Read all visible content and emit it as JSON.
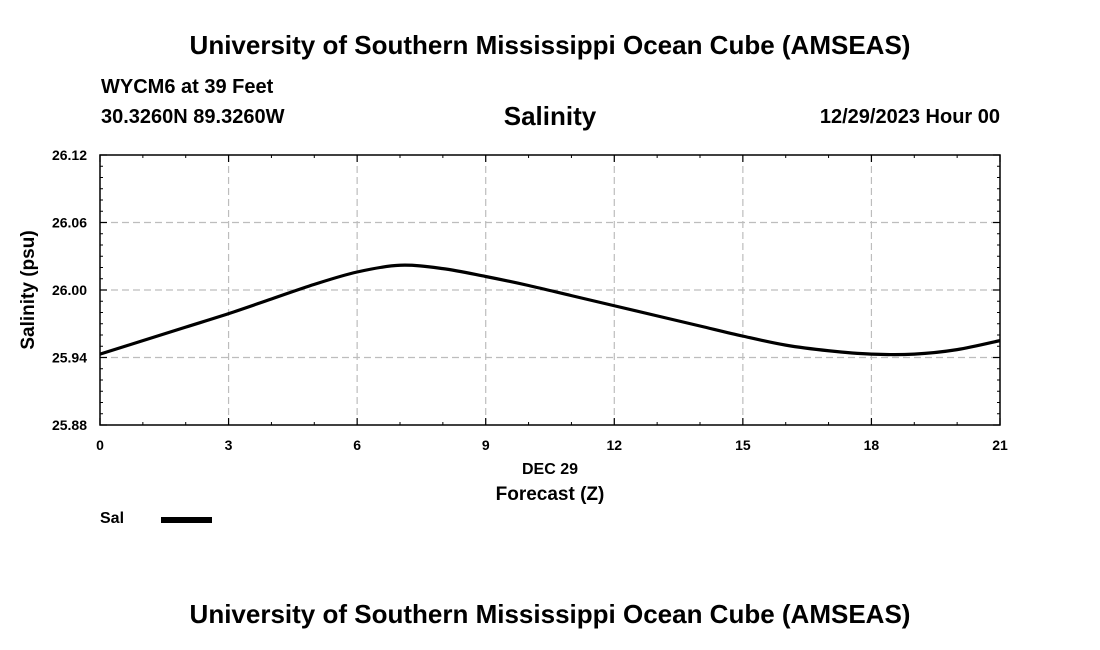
{
  "header": {
    "title": "University of Southern Mississippi Ocean Cube (AMSEAS)",
    "station": "WYCM6 at 39 Feet",
    "coords": "30.3260N  89.3260W",
    "chart_title": "Salinity",
    "datetime": "12/29/2023 Hour 00"
  },
  "footer": {
    "title": "University of Southern Mississippi Ocean Cube (AMSEAS)"
  },
  "legend": {
    "label": "Sal"
  },
  "chart_data": {
    "type": "line",
    "title": "Salinity",
    "xlabel": "Forecast (Z)",
    "xsublabel": "DEC 29",
    "ylabel": "Salinity (psu)",
    "xlim": [
      0,
      21
    ],
    "ylim": [
      25.88,
      26.12
    ],
    "xticks": [
      0,
      3,
      6,
      9,
      12,
      15,
      18,
      21
    ],
    "xtick_labels": [
      "0",
      "3",
      "6",
      "9",
      "12",
      "15",
      "18",
      "21"
    ],
    "yticks": [
      25.88,
      25.94,
      26.0,
      26.06,
      26.12
    ],
    "ytick_labels": [
      "25.88",
      "25.94",
      "26.00",
      "26.06",
      "26.12"
    ],
    "grid": true,
    "series": [
      {
        "name": "Sal",
        "color": "#000000",
        "x": [
          0,
          1,
          2,
          3,
          4,
          5,
          6,
          7,
          8,
          9,
          10,
          11,
          12,
          13,
          14,
          15,
          16,
          17,
          18,
          19,
          20,
          21
        ],
        "values": [
          25.943,
          25.955,
          25.967,
          25.979,
          25.992,
          26.005,
          26.016,
          26.022,
          26.019,
          26.012,
          26.004,
          25.995,
          25.986,
          25.977,
          25.968,
          25.959,
          25.951,
          25.946,
          25.943,
          25.943,
          25.947,
          25.955
        ]
      }
    ]
  }
}
